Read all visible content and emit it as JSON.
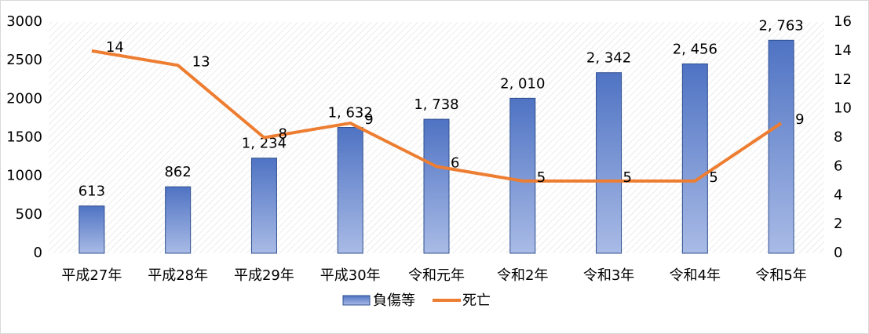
{
  "chart_data": {
    "type": "bar",
    "categories": [
      "平成27年",
      "平成28年",
      "平成29年",
      "平成30年",
      "令和元年",
      "令和2年",
      "令和3年",
      "令和4年",
      "令和5年"
    ],
    "series": [
      {
        "name": "負傷等",
        "type": "bar",
        "color": "#6f8fd2",
        "values": [
          613,
          862,
          1234,
          1632,
          1738,
          2010,
          2342,
          2456,
          2763
        ],
        "value_labels": [
          "613",
          "862",
          "1, 234",
          "1, 632",
          "1, 738",
          "2, 010",
          "2, 342",
          "2, 456",
          "2, 763"
        ]
      },
      {
        "name": "死亡",
        "type": "line",
        "axis": "y2",
        "color": "#ed7d31",
        "values": [
          14,
          13,
          8,
          9,
          6,
          5,
          5,
          5,
          9
        ]
      }
    ],
    "ylim": [
      0,
      3000
    ],
    "yticks": [
      0,
      500,
      1000,
      1500,
      2000,
      2500,
      3000
    ],
    "y2lim": [
      0,
      16
    ],
    "y2ticks": [
      0,
      2,
      4,
      6,
      8,
      10,
      12,
      14,
      16
    ],
    "grid": false,
    "legend": "bottom"
  }
}
